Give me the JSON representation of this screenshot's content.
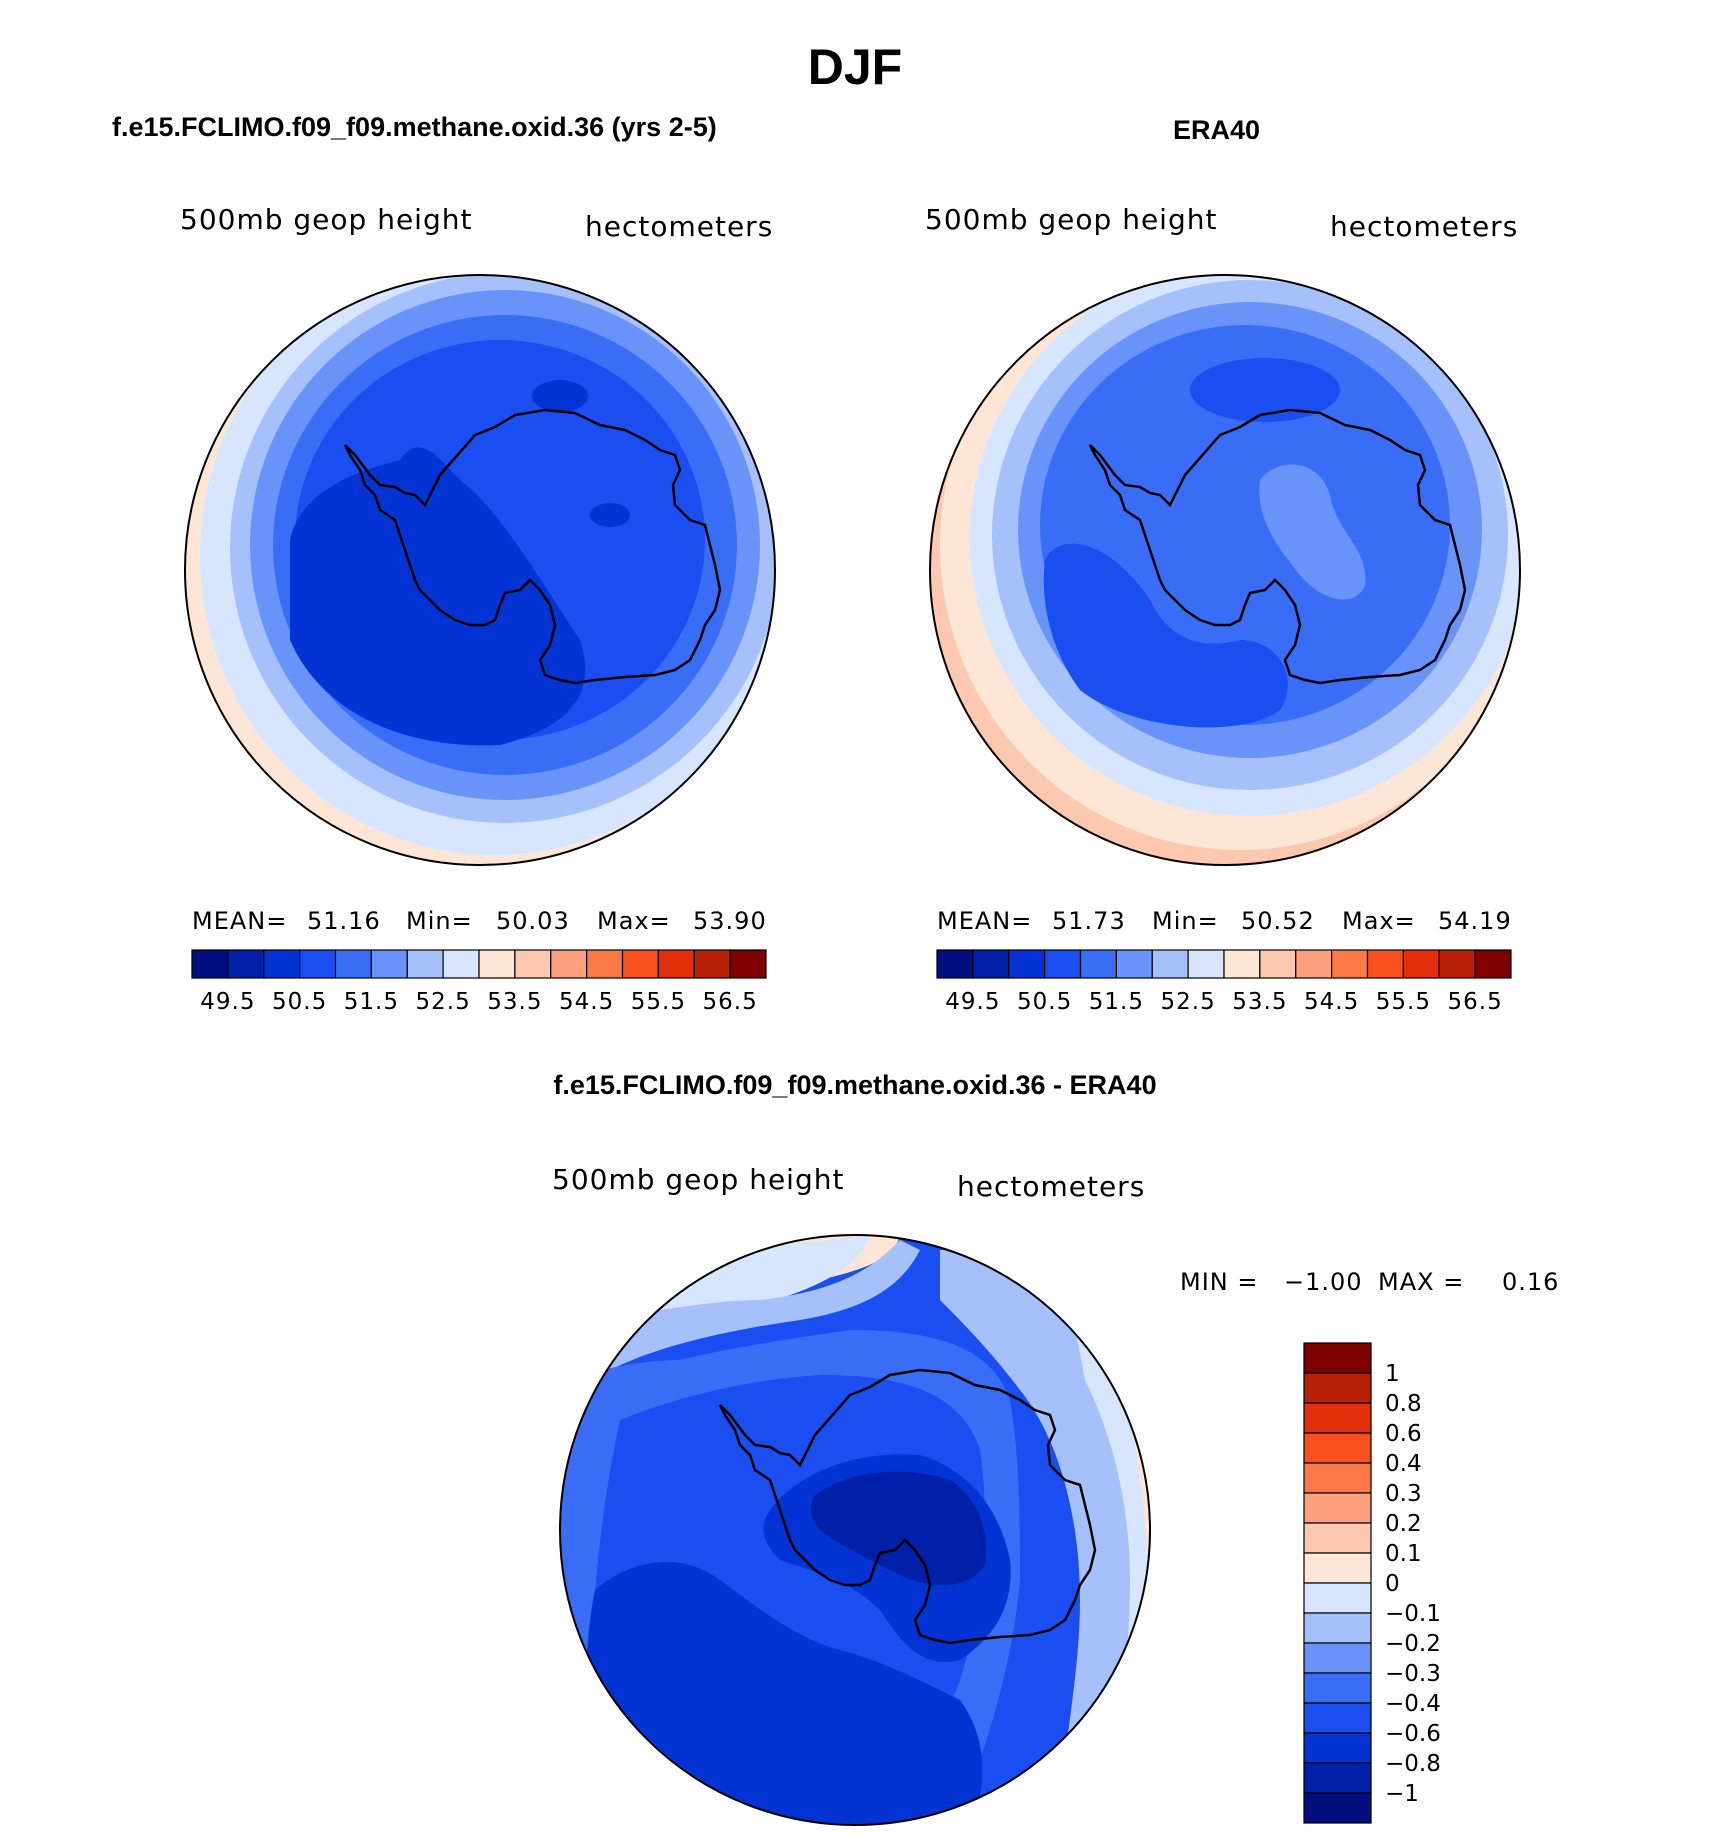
{
  "main_title": "DJF",
  "panels": [
    {
      "title": "f.e15.FCLIMO.f09_f09.methane.oxid.36 (yrs 2-5)",
      "left_label": "500mb  geop  height",
      "right_label": "hectometers",
      "stats": {
        "mean_label": "MEAN=",
        "mean": "51.16",
        "min_label": "Min=",
        "min": "50.03",
        "max_label": "Max=",
        "max": "53.90"
      }
    },
    {
      "title": "ERA40",
      "left_label": "500mb  geop  height",
      "right_label": "hectometers",
      "stats": {
        "mean_label": "MEAN=",
        "mean": "51.73",
        "min_label": "Min=",
        "min": "50.52",
        "max_label": "Max=",
        "max": "54.19"
      }
    },
    {
      "title": "f.e15.FCLIMO.f09_f09.methane.oxid.36 - ERA40",
      "left_label": "500mb  geop  height",
      "right_label": "hectometers",
      "stats": {
        "min_label": "MIN =",
        "min": "−1.00",
        "max_label": "MAX =",
        "max": "0.16"
      }
    }
  ],
  "colorbar_abs": {
    "colors": [
      "#000e80",
      "#0020a8",
      "#0433d4",
      "#1a4ef0",
      "#3a6df5",
      "#6a93fa",
      "#a6c0fc",
      "#d7e6fe",
      "#fde6d6",
      "#fdc8b0",
      "#fca07d",
      "#fb7a48",
      "#f8501e",
      "#e2300c",
      "#b71f06",
      "#7f0000"
    ],
    "tick_labels": [
      "49.5",
      "50.5",
      "51.5",
      "52.5",
      "53.5",
      "54.5",
      "55.5",
      "56.5"
    ]
  },
  "colorbar_diff": {
    "colors_top_to_bottom": [
      "#7f0000",
      "#b71f06",
      "#e2300c",
      "#f8501e",
      "#fb7a48",
      "#fca07d",
      "#fdc8b0",
      "#fde6d6",
      "#d7e6fe",
      "#a6c0fc",
      "#6a93fa",
      "#3a6df5",
      "#1a4ef0",
      "#0433d4",
      "#0020a8",
      "#000e80"
    ],
    "tick_labels": [
      "1",
      "0.8",
      "0.6",
      "0.4",
      "0.3",
      "0.2",
      "0.1",
      "0",
      "−0.1",
      "−0.2",
      "−0.3",
      "−0.4",
      "−0.6",
      "−0.8",
      "−1"
    ]
  },
  "maps": {
    "projection": "south polar stereographic",
    "region": "Antarctica",
    "variable": "500mb geopotential height"
  }
}
